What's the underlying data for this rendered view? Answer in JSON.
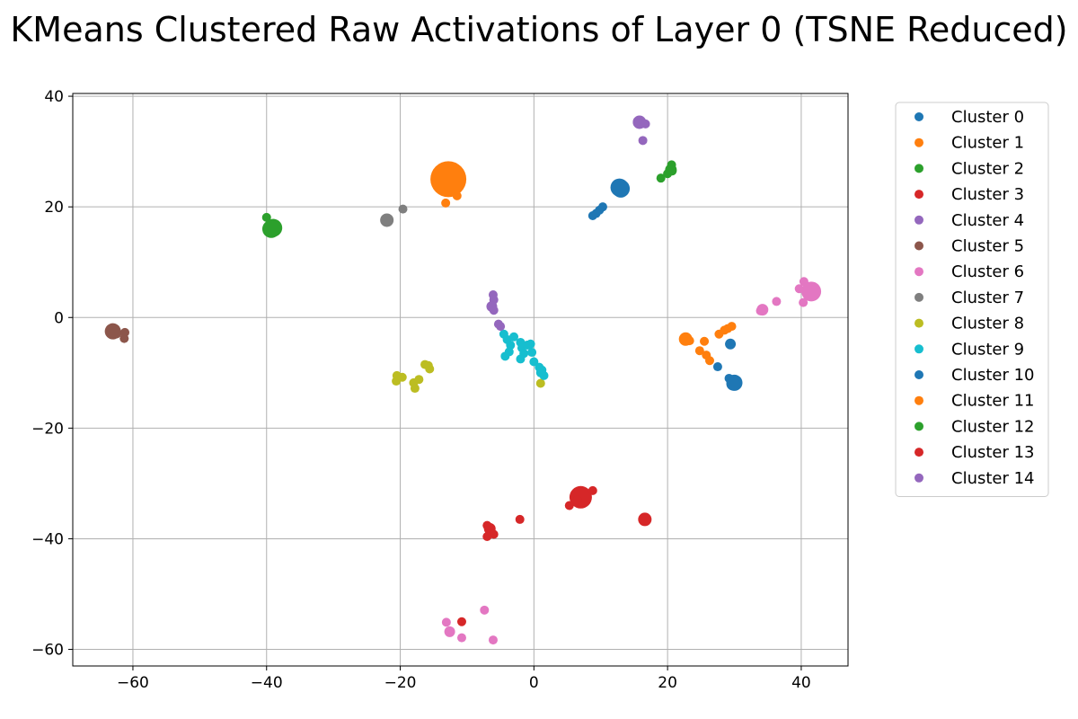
{
  "chart_data": {
    "type": "scatter",
    "title": "KMeans Clustered Raw Activations of Layer 0 (TSNE Reduced)",
    "xlabel": "",
    "ylabel": "",
    "xlim": [
      -69,
      47
    ],
    "ylim": [
      -63,
      40.5
    ],
    "xticks": [
      -60,
      -40,
      -20,
      0,
      20,
      40
    ],
    "yticks": [
      -60,
      -40,
      -20,
      0,
      20,
      40
    ],
    "xtick_labels": [
      "−60",
      "−40",
      "−20",
      "0",
      "20",
      "40"
    ],
    "ytick_labels": [
      "−60",
      "−40",
      "−20",
      "0",
      "20",
      "40"
    ],
    "grid": true,
    "legend_position": "outside-right-top",
    "series": [
      {
        "name": "Cluster 0",
        "color": "#1f77b4",
        "points": [
          [
            8.8,
            18.4
          ],
          [
            9.3,
            18.8
          ],
          [
            9.8,
            19.4
          ],
          [
            10.3,
            20.0
          ],
          [
            13.0,
            23.3
          ],
          [
            12.8,
            23.5
          ]
        ],
        "sizes": [
          1,
          1,
          1,
          1,
          2,
          2
        ]
      },
      {
        "name": "Cluster 1",
        "color": "#ff7f0e",
        "points": [
          [
            -12.8,
            25.0
          ],
          [
            -11.5,
            22.0
          ],
          [
            -13.2,
            20.7
          ]
        ],
        "sizes": [
          4,
          1,
          1
        ]
      },
      {
        "name": "Cluster 2",
        "color": "#2ca02c",
        "points": [
          [
            -40.0,
            18.1
          ],
          [
            -39.3,
            16.0
          ],
          [
            -39.0,
            16.2
          ]
        ],
        "sizes": [
          1,
          2,
          2
        ]
      },
      {
        "name": "Cluster 3",
        "color": "#d62728",
        "points": [
          [
            7.0,
            -32.5
          ],
          [
            8.8,
            -31.3
          ],
          [
            5.3,
            -34.0
          ],
          [
            6.5,
            -33.0
          ]
        ],
        "sizes": [
          2.5,
          1,
          1,
          1
        ]
      },
      {
        "name": "Cluster 4",
        "color": "#9467bd",
        "points": [
          [
            15.8,
            35.3
          ],
          [
            16.7,
            35.0
          ],
          [
            16.3,
            32.0
          ],
          [
            15.5,
            35.5
          ]
        ],
        "sizes": [
          1.5,
          1,
          1,
          1
        ]
      },
      {
        "name": "Cluster 5",
        "color": "#8c564b",
        "points": [
          [
            -63.0,
            -2.5
          ],
          [
            -62.5,
            -2.8
          ],
          [
            -61.2,
            -2.7
          ],
          [
            -61.3,
            -3.8
          ]
        ],
        "sizes": [
          1.8,
          1.2,
          1,
          1
        ]
      },
      {
        "name": "Cluster 6",
        "color": "#e377c2",
        "points": [
          [
            41.5,
            4.7
          ],
          [
            39.7,
            5.2
          ],
          [
            40.4,
            6.5
          ],
          [
            40.3,
            2.7
          ],
          [
            36.3,
            2.9
          ],
          [
            34.2,
            1.4
          ],
          [
            33.9,
            1.2
          ]
        ],
        "sizes": [
          2.2,
          1,
          1,
          1,
          1,
          1.3,
          1
        ]
      },
      {
        "name": "Cluster 7",
        "color": "#7f7f7f",
        "points": [
          [
            -22.0,
            17.6
          ],
          [
            -19.6,
            19.6
          ]
        ],
        "sizes": [
          1.5,
          1
        ]
      },
      {
        "name": "Cluster 8",
        "color": "#bcbd22",
        "points": [
          [
            -20.5,
            -10.5
          ],
          [
            -20.6,
            -11.5
          ],
          [
            -19.7,
            -10.8
          ],
          [
            -18.0,
            -11.8
          ],
          [
            -17.8,
            -12.8
          ],
          [
            -17.2,
            -11.2
          ],
          [
            -16.3,
            -8.5
          ],
          [
            -15.6,
            -9.3
          ],
          [
            -15.8,
            -8.7
          ],
          [
            1.0,
            -11.9
          ]
        ],
        "sizes": [
          1,
          1,
          1,
          1,
          1,
          1,
          1,
          1,
          1,
          1
        ]
      },
      {
        "name": "Cluster 9",
        "color": "#17becf",
        "points": [
          [
            -4.5,
            -3.0
          ],
          [
            -4.0,
            -4.0
          ],
          [
            -3.5,
            -5.0
          ],
          [
            -3.7,
            -6.2
          ],
          [
            -4.3,
            -7.0
          ],
          [
            -3.0,
            -3.5
          ],
          [
            -2.0,
            -4.5
          ],
          [
            -1.8,
            -5.5
          ],
          [
            -1.5,
            -6.5
          ],
          [
            -2.0,
            -7.5
          ],
          [
            -0.5,
            -4.8
          ],
          [
            -0.3,
            -6.3
          ],
          [
            0.0,
            -8.0
          ],
          [
            0.8,
            -9.0
          ],
          [
            1.0,
            -10.0
          ],
          [
            1.2,
            -9.5
          ],
          [
            1.5,
            -10.5
          ],
          [
            -1.0,
            -5.0
          ]
        ],
        "sizes": [
          1,
          1,
          1,
          1,
          1,
          1,
          1,
          1,
          1,
          1,
          1,
          1,
          1,
          1,
          1,
          1,
          1,
          1
        ]
      },
      {
        "name": "Cluster 10",
        "color": "#1f77b4",
        "points": [
          [
            29.4,
            -4.8
          ],
          [
            29.2,
            -11.0
          ],
          [
            30.0,
            -11.8
          ],
          [
            29.8,
            -12.0
          ],
          [
            27.5,
            -8.9
          ]
        ],
        "sizes": [
          1.2,
          1,
          1.8,
          1.5,
          1
        ]
      },
      {
        "name": "Cluster 11",
        "color": "#ff7f0e",
        "points": [
          [
            22.7,
            -3.9
          ],
          [
            23.3,
            -4.2
          ],
          [
            25.5,
            -4.3
          ],
          [
            24.8,
            -6.0
          ],
          [
            25.8,
            -6.8
          ],
          [
            26.3,
            -7.8
          ],
          [
            27.7,
            -3.0
          ],
          [
            28.5,
            -2.3
          ],
          [
            29.0,
            -2.0
          ],
          [
            29.6,
            -1.6
          ]
        ],
        "sizes": [
          1.5,
          1,
          1,
          1,
          1,
          1,
          1,
          1,
          1,
          1
        ]
      },
      {
        "name": "Cluster 12",
        "color": "#2ca02c",
        "points": [
          [
            20.5,
            26.7
          ],
          [
            20.6,
            27.6
          ],
          [
            20.0,
            26.0
          ],
          [
            19.0,
            25.2
          ],
          [
            20.7,
            26.5
          ]
        ],
        "sizes": [
          1.3,
          1,
          1,
          1,
          1
        ]
      },
      {
        "name": "Cluster 13",
        "color": "#d62728",
        "points": [
          [
            16.6,
            -36.5
          ],
          [
            -2.1,
            -36.5
          ],
          [
            -6.6,
            -38.2
          ],
          [
            -7.0,
            -37.6
          ],
          [
            -6.0,
            -39.2
          ],
          [
            -7.0,
            -39.6
          ],
          [
            -10.8,
            -55.0
          ]
        ],
        "sizes": [
          1.5,
          1,
          1.3,
          1,
          1,
          1,
          1
        ]
      },
      {
        "name": "Cluster 14",
        "color": "#9467bd",
        "points": [
          [
            -6.1,
            4.1
          ],
          [
            -6.0,
            3.2
          ],
          [
            -6.3,
            2.0
          ],
          [
            -6.0,
            1.3
          ],
          [
            -5.3,
            -1.2
          ],
          [
            -5.0,
            -1.6
          ]
        ],
        "sizes": [
          1,
          1,
          1.2,
          1,
          1,
          1
        ]
      }
    ],
    "extra_points": [
      {
        "series": "Cluster 6",
        "color": "#e377c2",
        "points": [
          [
            -13.1,
            -55.1
          ],
          [
            -12.6,
            -56.8
          ],
          [
            -10.8,
            -57.9
          ],
          [
            -7.4,
            -52.9
          ],
          [
            -6.1,
            -58.3
          ]
        ],
        "sizes": [
          1,
          1.2,
          1,
          1,
          1
        ]
      }
    ]
  }
}
